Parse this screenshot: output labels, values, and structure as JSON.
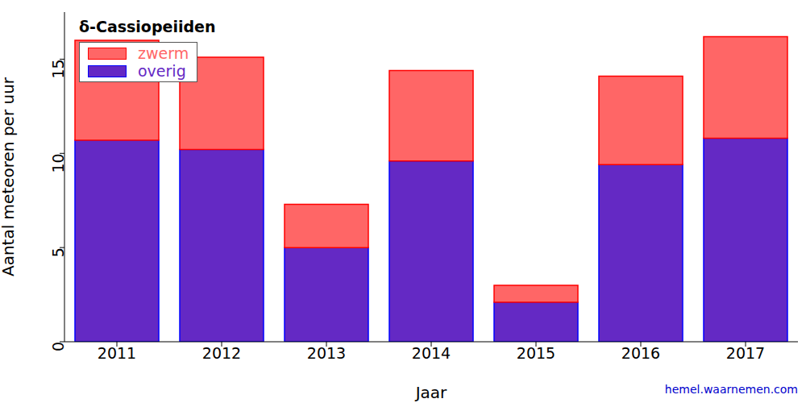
{
  "chart_data": {
    "type": "bar",
    "title": "δ-Cassiopeiiden",
    "x_label": "Jaar",
    "y_label": "Aantal meteoren per uur",
    "source": "hemel.waarnemen.com",
    "categories": [
      "2011",
      "2012",
      "2013",
      "2014",
      "2015",
      "2016",
      "2017"
    ],
    "series": [
      {
        "name": "overig",
        "color": "#6429c4",
        "values": [
          10.7,
          10.2,
          5.0,
          9.6,
          2.1,
          9.4,
          10.8
        ]
      },
      {
        "name": "zwerm",
        "color": "#ff6666",
        "values": [
          5.3,
          4.9,
          2.3,
          4.8,
          0.9,
          4.7,
          5.4
        ]
      }
    ],
    "stacked": true,
    "ylim": [
      0,
      17.5
    ],
    "yticks": [
      0,
      5,
      10,
      15
    ],
    "legend": "upper left",
    "grid": false
  }
}
